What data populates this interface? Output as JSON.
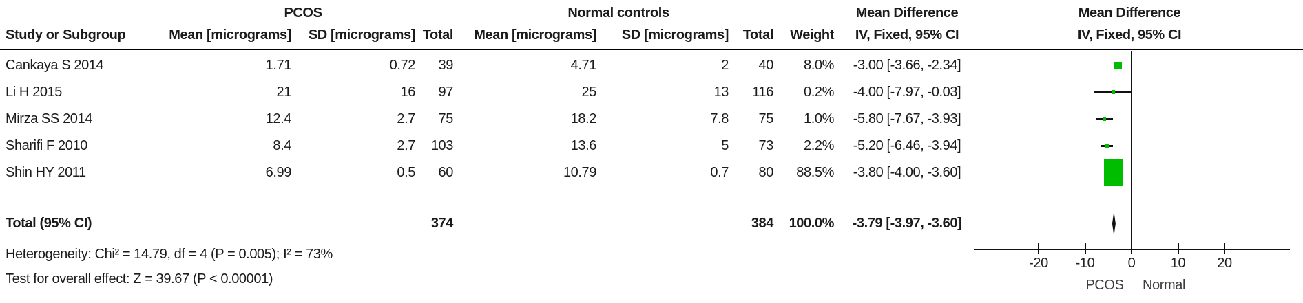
{
  "table": {
    "group_headers": {
      "pcos": "PCOS",
      "normal": "Normal controls",
      "md_text": "Mean Difference",
      "md_plot": "Mean Difference"
    },
    "columns": {
      "study": "Study or Subgroup",
      "mean": "Mean [micrograms]",
      "sd": "SD [micrograms]",
      "total": "Total",
      "weight": "Weight",
      "ci": "IV, Fixed, 95% CI",
      "ci_plot": "IV, Fixed, 95% CI"
    },
    "rows": [
      {
        "study": "Cankaya S 2014",
        "mean1": "1.71",
        "sd1": "0.72",
        "total1": "39",
        "mean2": "4.71",
        "sd2": "2",
        "total2": "40",
        "weight": "8.0%",
        "ci": "-3.00 [-3.66, -2.34]"
      },
      {
        "study": "Li H 2015",
        "mean1": "21",
        "sd1": "16",
        "total1": "97",
        "mean2": "25",
        "sd2": "13",
        "total2": "116",
        "weight": "0.2%",
        "ci": "-4.00 [-7.97, -0.03]"
      },
      {
        "study": "Mirza SS 2014",
        "mean1": "12.4",
        "sd1": "2.7",
        "total1": "75",
        "mean2": "18.2",
        "sd2": "7.8",
        "total2": "75",
        "weight": "1.0%",
        "ci": "-5.80 [-7.67, -3.93]"
      },
      {
        "study": "Sharifi F 2010",
        "mean1": "8.4",
        "sd1": "2.7",
        "total1": "103",
        "mean2": "13.6",
        "sd2": "5",
        "total2": "73",
        "weight": "2.2%",
        "ci": "-5.20 [-6.46, -3.94]"
      },
      {
        "study": "Shin HY 2011",
        "mean1": "6.99",
        "sd1": "0.5",
        "total1": "60",
        "mean2": "10.79",
        "sd2": "0.7",
        "total2": "80",
        "weight": "88.5%",
        "ci": "-3.80 [-4.00, -3.60]"
      }
    ],
    "total_row": {
      "label": "Total (95% CI)",
      "total1": "374",
      "total2": "384",
      "weight": "100.0%",
      "ci": "-3.79 [-3.97, -3.60]"
    },
    "heterogeneity": "Heterogeneity: Chi² = 14.79, df = 4 (P = 0.005); I² = 73%",
    "overall_effect": "Test for overall effect: Z = 39.67 (P < 0.00001)"
  },
  "plot": {
    "marker_color": "#00bd00",
    "line_color": "#111111",
    "xlabel_left": "PCOS",
    "xlabel_right": "Normal"
  },
  "chart_data": {
    "type": "forest",
    "title": "Mean Difference IV, Fixed, 95% CI",
    "effect_measure": "Mean Difference",
    "model": "IV, Fixed",
    "unit": "micrograms",
    "studies": [
      {
        "study": "Cankaya S 2014",
        "pcos_mean": 1.71,
        "pcos_sd": 0.72,
        "pcos_total": 39,
        "control_mean": 4.71,
        "control_sd": 2,
        "control_total": 40,
        "weight_pct": 8.0,
        "md": -3.0,
        "ci_low": -3.66,
        "ci_high": -2.34
      },
      {
        "study": "Li H 2015",
        "pcos_mean": 21,
        "pcos_sd": 16,
        "pcos_total": 97,
        "control_mean": 25,
        "control_sd": 13,
        "control_total": 116,
        "weight_pct": 0.2,
        "md": -4.0,
        "ci_low": -7.97,
        "ci_high": -0.03
      },
      {
        "study": "Mirza SS 2014",
        "pcos_mean": 12.4,
        "pcos_sd": 2.7,
        "pcos_total": 75,
        "control_mean": 18.2,
        "control_sd": 7.8,
        "control_total": 75,
        "weight_pct": 1.0,
        "md": -5.8,
        "ci_low": -7.67,
        "ci_high": -3.93
      },
      {
        "study": "Sharifi F 2010",
        "pcos_mean": 8.4,
        "pcos_sd": 2.7,
        "pcos_total": 103,
        "control_mean": 13.6,
        "control_sd": 5,
        "control_total": 73,
        "weight_pct": 2.2,
        "md": -5.2,
        "ci_low": -6.46,
        "ci_high": -3.94
      },
      {
        "study": "Shin HY 2011",
        "pcos_mean": 6.99,
        "pcos_sd": 0.5,
        "pcos_total": 60,
        "control_mean": 10.79,
        "control_sd": 0.7,
        "control_total": 80,
        "weight_pct": 88.5,
        "md": -3.8,
        "ci_low": -4.0,
        "ci_high": -3.6
      }
    ],
    "total": {
      "pcos_total": 374,
      "control_total": 384,
      "weight_pct": 100.0,
      "md": -3.79,
      "ci_low": -3.97,
      "ci_high": -3.6
    },
    "heterogeneity": {
      "chi2": 14.79,
      "df": 4,
      "p": "0.005",
      "i2_pct": 73
    },
    "overall_effect": {
      "z": 39.67,
      "p": "< 0.00001"
    },
    "x_ticks": [
      -20,
      -10,
      0,
      10,
      20
    ],
    "xlim": [
      -34,
      34
    ],
    "xlabel_left": "PCOS",
    "xlabel_right": "Normal",
    "grid": false,
    "legend": false
  }
}
